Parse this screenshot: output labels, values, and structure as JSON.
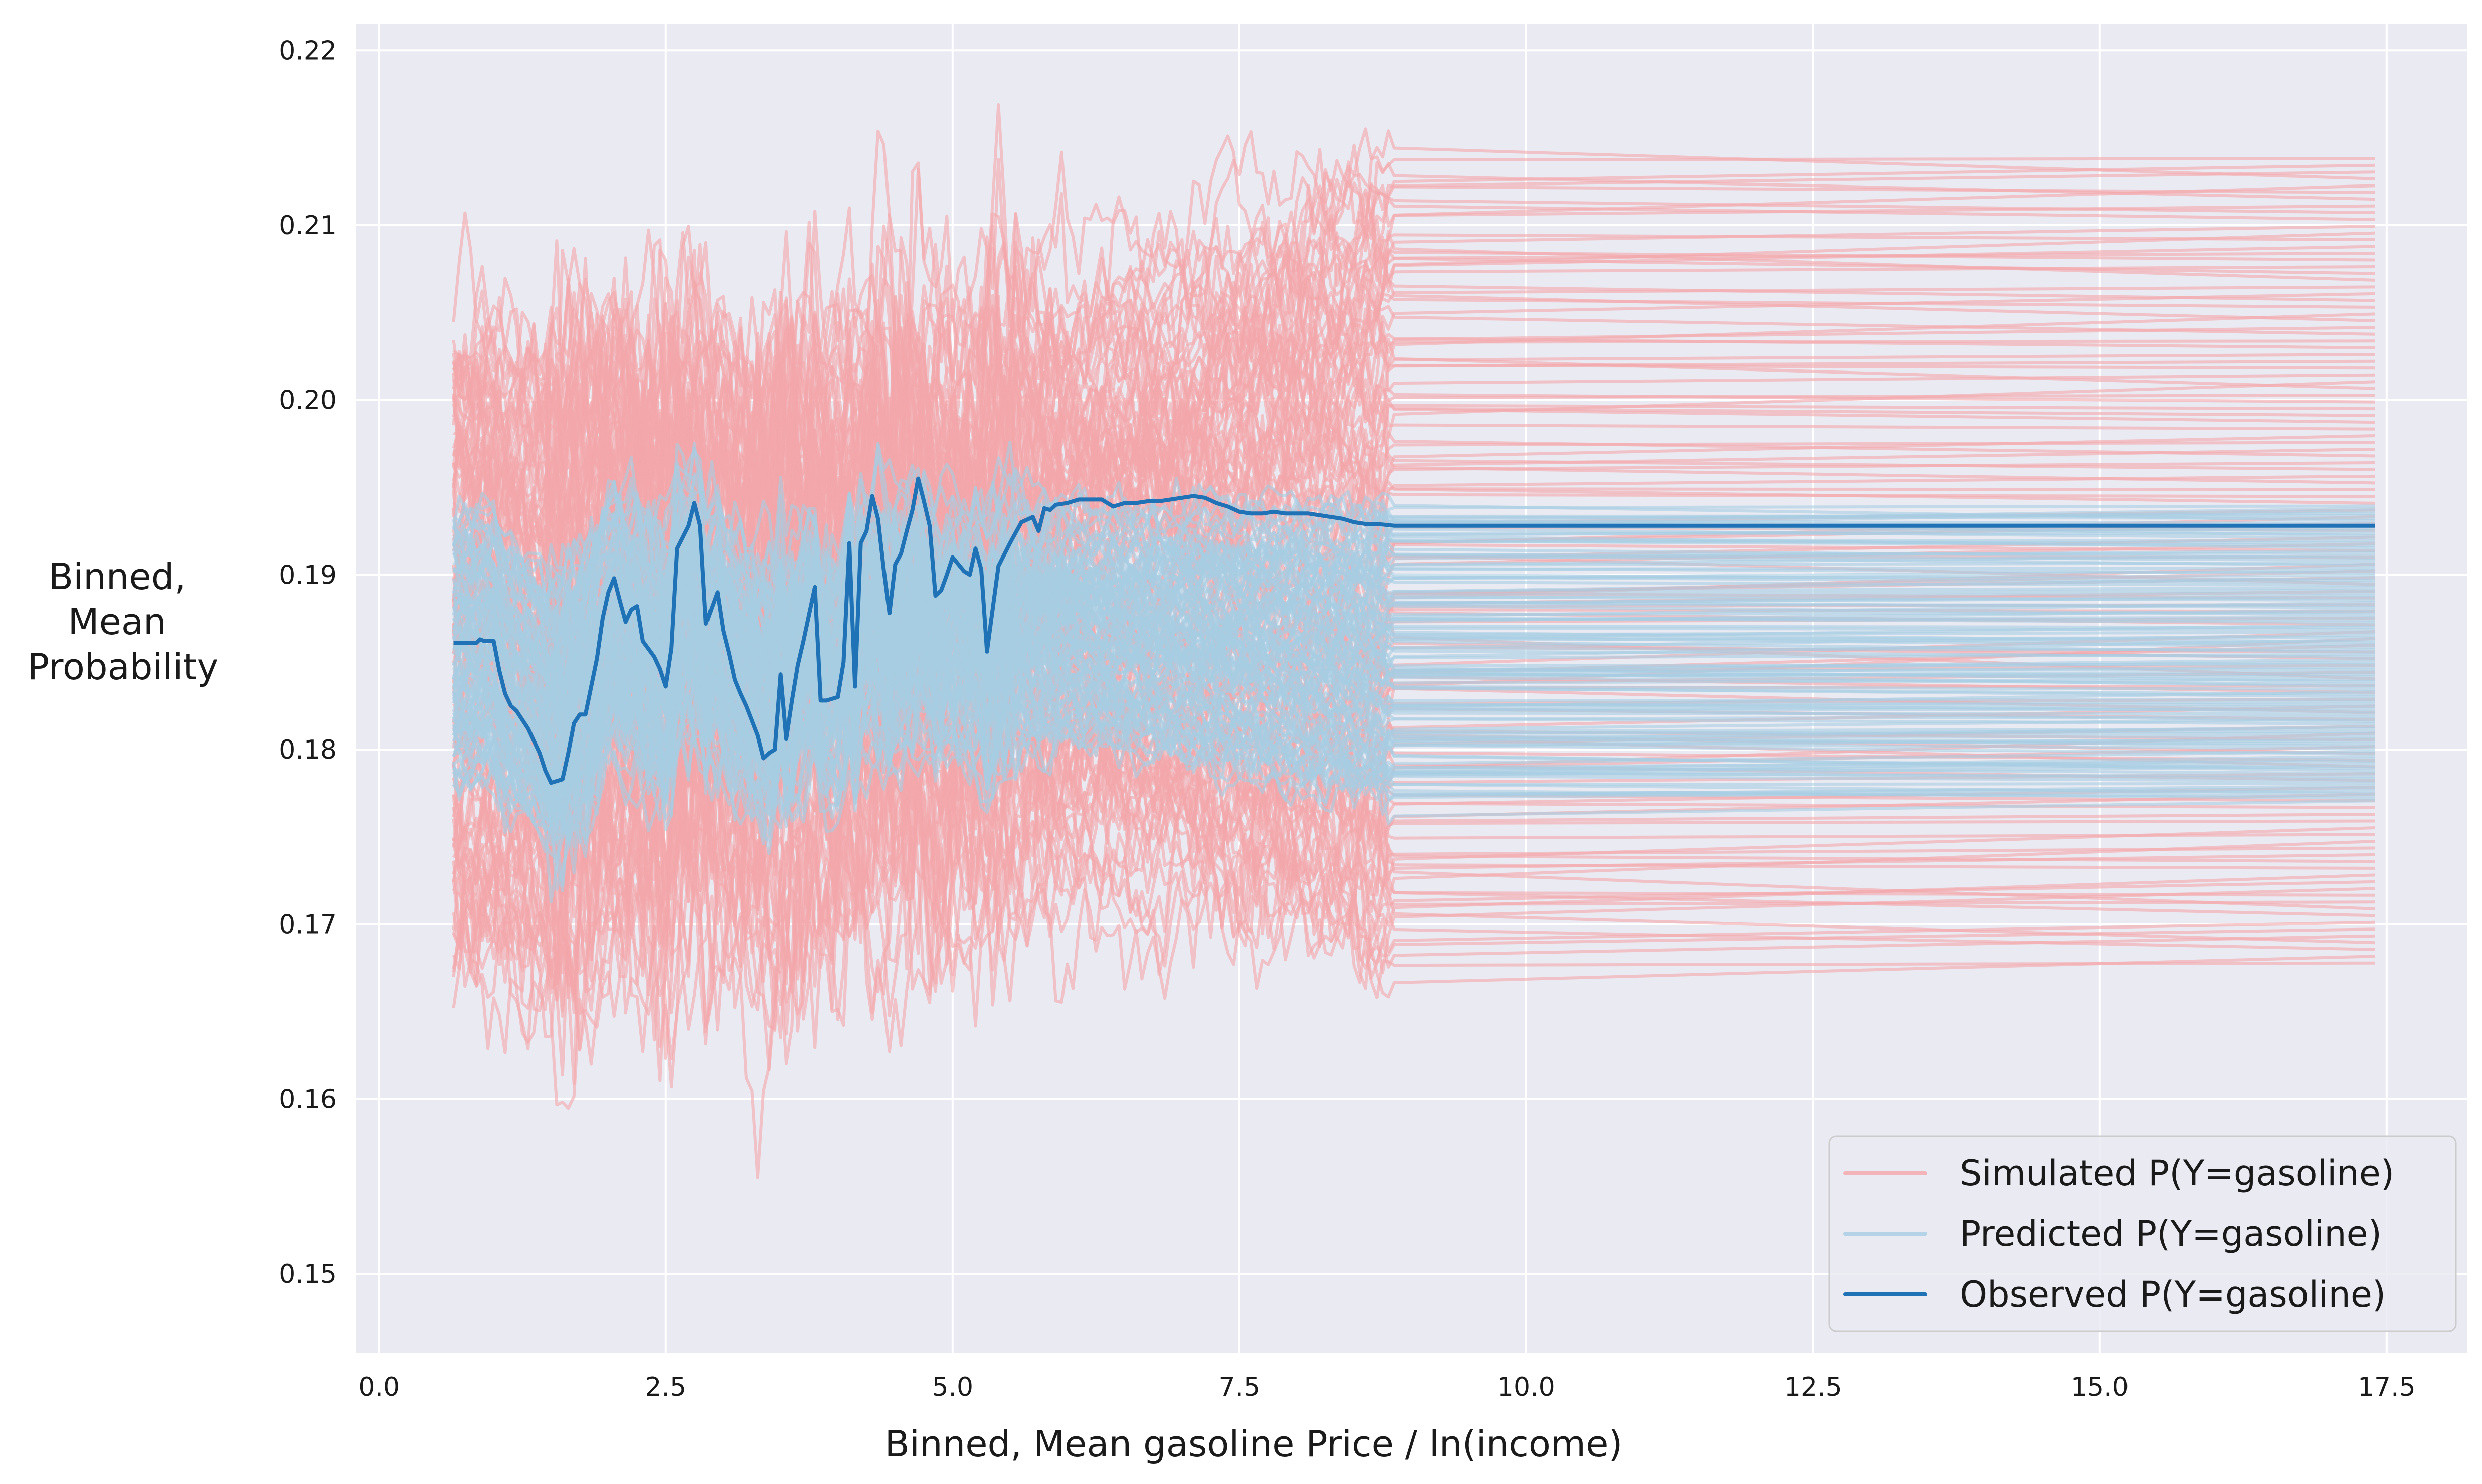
{
  "chart_data": {
    "type": "line",
    "title": "",
    "xlabel": "Binned, Mean gasoline Price / ln(income)",
    "ylabel_lines": [
      "Binned,",
      "Mean",
      "Probability"
    ],
    "xlim": [
      -0.2,
      18.2
    ],
    "ylim": [
      0.1455,
      0.2215
    ],
    "x_ticks": [
      0.0,
      2.5,
      5.0,
      7.5,
      10.0,
      12.5,
      15.0,
      17.5
    ],
    "x_tick_labels": [
      "0.0",
      "2.5",
      "5.0",
      "7.5",
      "10.0",
      "12.5",
      "15.0",
      "17.5"
    ],
    "y_ticks": [
      0.15,
      0.16,
      0.17,
      0.18,
      0.19,
      0.2,
      0.21,
      0.22
    ],
    "y_tick_labels": [
      "0.15",
      "0.16",
      "0.17",
      "0.18",
      "0.19",
      "0.20",
      "0.21",
      "0.22"
    ],
    "grid": true,
    "legend_position": "bottom-right",
    "x_range": [
      0.65,
      17.4
    ],
    "flat_from_x": 8.85,
    "series": [
      {
        "name": "Simulated P(Y=gasoline)",
        "color": "#f4a6aa",
        "opacity": 0.6,
        "count": 120,
        "center": 0.1857,
        "spread_sd": 0.0075,
        "end_value_min": 0.1676,
        "end_value_max": 0.214
      },
      {
        "name": "Predicted P(Y=gasoline)",
        "color": "#a6cde3",
        "opacity": 0.6,
        "count": 120,
        "center": 0.1857,
        "spread_sd": 0.003,
        "end_value_min": 0.177,
        "end_value_max": 0.194
      },
      {
        "name": "Observed P(Y=gasoline)",
        "color": "#1f72b5",
        "x": [
          0.65,
          0.85,
          0.88,
          0.92,
          1.0,
          1.05,
          1.1,
          1.15,
          1.2,
          1.3,
          1.4,
          1.45,
          1.5,
          1.6,
          1.65,
          1.7,
          1.75,
          1.8,
          1.9,
          1.95,
          2.0,
          2.05,
          2.1,
          2.15,
          2.2,
          2.25,
          2.3,
          2.4,
          2.45,
          2.5,
          2.55,
          2.6,
          2.7,
          2.75,
          2.8,
          2.85,
          2.9,
          2.95,
          3.0,
          3.05,
          3.1,
          3.15,
          3.2,
          3.3,
          3.35,
          3.4,
          3.45,
          3.5,
          3.55,
          3.6,
          3.65,
          3.7,
          3.8,
          3.85,
          3.9,
          4.0,
          4.05,
          4.1,
          4.15,
          4.2,
          4.25,
          4.3,
          4.35,
          4.4,
          4.45,
          4.5,
          4.55,
          4.6,
          4.65,
          4.7,
          4.75,
          4.8,
          4.85,
          4.9,
          4.95,
          5.0,
          5.05,
          5.1,
          5.15,
          5.2,
          5.25,
          5.3,
          5.4,
          5.5,
          5.6,
          5.7,
          5.75,
          5.8,
          5.85,
          5.9,
          6.0,
          6.1,
          6.2,
          6.3,
          6.4,
          6.5,
          6.6,
          6.7,
          6.8,
          6.9,
          7.0,
          7.1,
          7.2,
          7.3,
          7.4,
          7.5,
          7.6,
          7.7,
          7.8,
          7.9,
          8.0,
          8.1,
          8.2,
          8.3,
          8.4,
          8.5,
          8.6,
          8.7,
          8.85,
          17.4
        ],
        "y": [
          0.1861,
          0.1861,
          0.1863,
          0.1862,
          0.1862,
          0.1845,
          0.1832,
          0.1825,
          0.1822,
          0.1812,
          0.1798,
          0.1788,
          0.1781,
          0.1783,
          0.1798,
          0.1815,
          0.182,
          0.182,
          0.1852,
          0.1875,
          0.189,
          0.1898,
          0.1885,
          0.1873,
          0.188,
          0.1882,
          0.1862,
          0.1853,
          0.1846,
          0.1836,
          0.1858,
          0.1915,
          0.1928,
          0.1941,
          0.1928,
          0.1872,
          0.1881,
          0.189,
          0.1868,
          0.1855,
          0.184,
          0.1832,
          0.1825,
          0.1808,
          0.1795,
          0.1798,
          0.18,
          0.1843,
          0.1806,
          0.1828,
          0.1848,
          0.1862,
          0.1893,
          0.1828,
          0.1828,
          0.183,
          0.185,
          0.1918,
          0.1836,
          0.1918,
          0.1925,
          0.1945,
          0.1932,
          0.1903,
          0.1878,
          0.1906,
          0.1912,
          0.1925,
          0.1937,
          0.1955,
          0.1942,
          0.1928,
          0.1888,
          0.1891,
          0.19,
          0.191,
          0.1906,
          0.1902,
          0.19,
          0.1915,
          0.1903,
          0.1856,
          0.1905,
          0.1918,
          0.193,
          0.1933,
          0.1925,
          0.1938,
          0.1937,
          0.194,
          0.1941,
          0.1943,
          0.1943,
          0.1943,
          0.1939,
          0.1941,
          0.1941,
          0.1942,
          0.1942,
          0.1943,
          0.1944,
          0.1945,
          0.1944,
          0.1941,
          0.1939,
          0.1936,
          0.1935,
          0.1935,
          0.1936,
          0.1935,
          0.1935,
          0.1935,
          0.1934,
          0.1933,
          0.1932,
          0.193,
          0.1929,
          0.1929,
          0.1928,
          0.1928
        ]
      }
    ]
  }
}
